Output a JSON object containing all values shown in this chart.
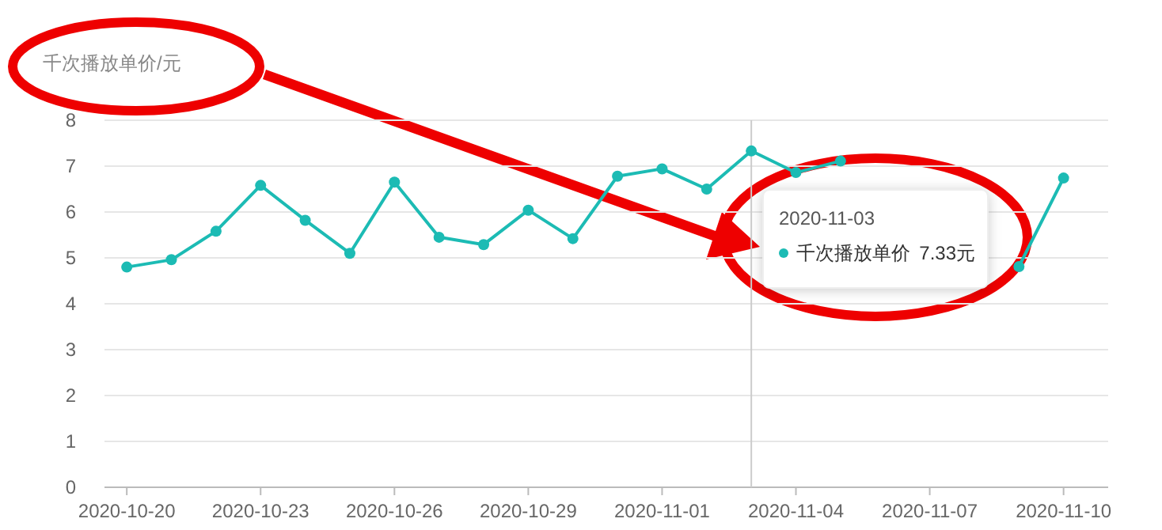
{
  "chart_data": {
    "type": "line",
    "ylabel": "千次播放单价/元",
    "x": [
      "2020-10-20",
      "2020-10-21",
      "2020-10-22",
      "2020-10-23",
      "2020-10-24",
      "2020-10-25",
      "2020-10-26",
      "2020-10-27",
      "2020-10-28",
      "2020-10-29",
      "2020-10-30",
      "2020-10-31",
      "2020-11-01",
      "2020-11-02",
      "2020-11-03",
      "2020-11-04",
      "2020-11-05",
      "2020-11-06",
      "2020-11-07",
      "2020-11-08",
      "2020-11-09",
      "2020-11-10"
    ],
    "series": [
      {
        "name": "千次播放单价",
        "color": "#1cbbb4",
        "values": [
          4.8,
          4.96,
          5.58,
          6.58,
          5.82,
          5.1,
          6.65,
          5.45,
          5.29,
          6.04,
          5.42,
          6.78,
          6.94,
          6.5,
          7.33,
          6.86,
          7.11,
          null,
          null,
          null,
          4.81,
          6.74
        ]
      }
    ],
    "xlim": [
      "2020-10-19T12:00",
      "2020-11-11T00:00"
    ],
    "xticks": [
      {
        "value": "2020-10-20",
        "label": "2020-10-20"
      },
      {
        "value": "2020-10-23",
        "label": "2020-10-23"
      },
      {
        "value": "2020-10-26",
        "label": "2020-10-26"
      },
      {
        "value": "2020-10-29",
        "label": "2020-10-29"
      },
      {
        "value": "2020-11-01",
        "label": "2020-11-01"
      },
      {
        "value": "2020-11-04",
        "label": "2020-11-04"
      },
      {
        "value": "2020-11-07",
        "label": "2020-11-07"
      },
      {
        "value": "2020-11-10",
        "label": "2020-11-10"
      }
    ],
    "ylim": [
      0,
      8
    ],
    "yticks": [
      0,
      1,
      2,
      3,
      4,
      5,
      6,
      7,
      8
    ],
    "grid": "y",
    "marker": "circle",
    "line_style": "solid",
    "ref_lines": [
      {
        "axis": "x",
        "value": "2020-11-03",
        "color": "#cccccc"
      }
    ],
    "annotations": [
      "2020-11-03",
      "7.33元"
    ]
  }
}
